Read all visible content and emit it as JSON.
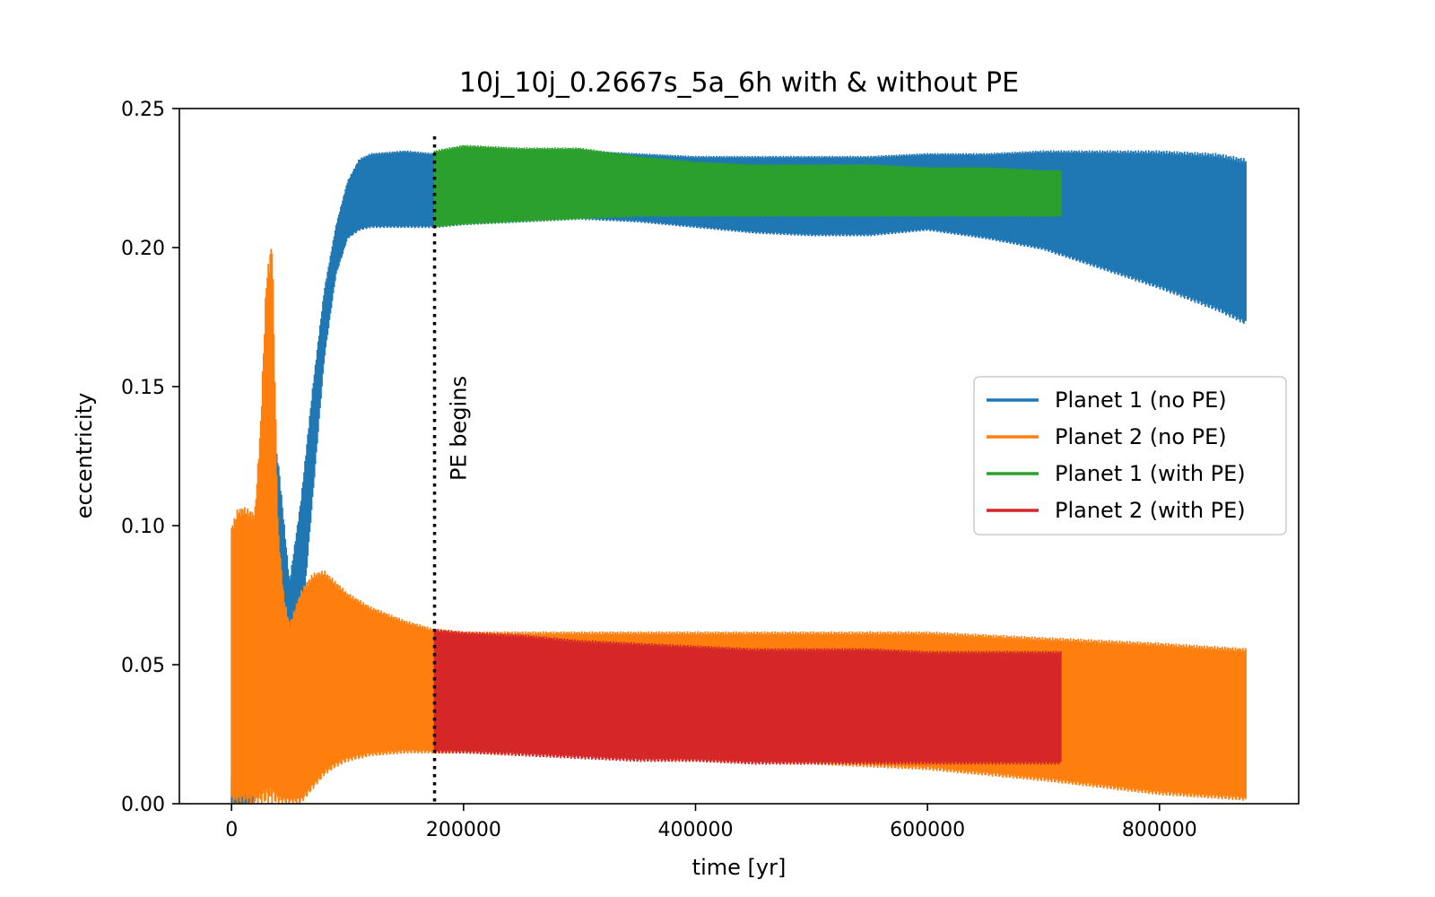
{
  "chart_data": {
    "type": "area",
    "title": "10j_10j_0.2667s_5a_6h with & without PE",
    "xlabel": "time [yr]",
    "ylabel": "eccentricity",
    "xlim": [
      -45000,
      920000
    ],
    "ylim": [
      0,
      0.25
    ],
    "x_ticks": [
      0,
      200000,
      400000,
      600000,
      800000
    ],
    "x_tick_labels": [
      "0",
      "200000",
      "400000",
      "600000",
      "800000"
    ],
    "y_ticks": [
      0,
      0.05,
      0.1,
      0.15,
      0.2,
      0.25
    ],
    "y_tick_labels": [
      "0.00",
      "0.05",
      "0.10",
      "0.15",
      "0.20",
      "0.25"
    ],
    "grid": false,
    "legend_position": "center-right",
    "annotation": {
      "text": "PE begins",
      "x": 175000
    },
    "series": [
      {
        "name": "Planet 1 (no PE)",
        "color": "#1f77b4",
        "x": [
          0,
          10000,
          20000,
          30000,
          40000,
          50000,
          60000,
          70000,
          80000,
          90000,
          100000,
          110000,
          120000,
          150000,
          175000,
          200000,
          250000,
          300000,
          350000,
          400000,
          450000,
          500000,
          550000,
          600000,
          650000,
          700000,
          750000,
          800000,
          850000,
          875000
        ],
        "upper": [
          0.01,
          0.012,
          0.03,
          0.135,
          0.125,
          0.08,
          0.11,
          0.15,
          0.185,
          0.208,
          0.224,
          0.232,
          0.234,
          0.235,
          0.234,
          0.235,
          0.235,
          0.235,
          0.234,
          0.233,
          0.233,
          0.233,
          0.233,
          0.234,
          0.234,
          0.235,
          0.235,
          0.235,
          0.234,
          0.232
        ],
        "lower": [
          0.0,
          0.0,
          0.0,
          0.05,
          0.03,
          0.04,
          0.06,
          0.11,
          0.16,
          0.19,
          0.203,
          0.206,
          0.207,
          0.207,
          0.207,
          0.208,
          0.209,
          0.21,
          0.209,
          0.207,
          0.205,
          0.204,
          0.204,
          0.206,
          0.203,
          0.199,
          0.192,
          0.185,
          0.177,
          0.172
        ]
      },
      {
        "name": "Planet 2 (no PE)",
        "color": "#ff7f0e",
        "x": [
          0,
          5000,
          10000,
          20000,
          25000,
          30000,
          35000,
          40000,
          45000,
          50000,
          60000,
          70000,
          80000,
          90000,
          100000,
          120000,
          150000,
          175000,
          200000,
          300000,
          400000,
          500000,
          600000,
          700000,
          800000,
          875000
        ],
        "upper": [
          0.1,
          0.106,
          0.107,
          0.105,
          0.137,
          0.19,
          0.204,
          0.1,
          0.075,
          0.065,
          0.077,
          0.083,
          0.084,
          0.08,
          0.076,
          0.071,
          0.066,
          0.063,
          0.062,
          0.062,
          0.062,
          0.062,
          0.062,
          0.06,
          0.058,
          0.056
        ],
        "lower": [
          0.0,
          0.0,
          0.0,
          0.0,
          0.0,
          0.0,
          0.0,
          0.0,
          0.0,
          0.0,
          0.0,
          0.005,
          0.01,
          0.013,
          0.015,
          0.017,
          0.018,
          0.018,
          0.018,
          0.017,
          0.015,
          0.014,
          0.012,
          0.008,
          0.003,
          0.001
        ]
      },
      {
        "name": "Planet 1 (with PE)",
        "color": "#2ca02c",
        "x": [
          175000,
          200000,
          250000,
          300000,
          350000,
          400000,
          450000,
          500000,
          550000,
          600000,
          650000,
          700000,
          715000
        ],
        "upper": [
          0.235,
          0.237,
          0.236,
          0.236,
          0.233,
          0.231,
          0.23,
          0.23,
          0.23,
          0.229,
          0.229,
          0.228,
          0.228
        ],
        "lower": [
          0.207,
          0.208,
          0.209,
          0.21,
          0.211,
          0.211,
          0.211,
          0.211,
          0.211,
          0.211,
          0.211,
          0.211,
          0.211
        ]
      },
      {
        "name": "Planet 2 (with PE)",
        "color": "#d62728",
        "x": [
          175000,
          200000,
          250000,
          300000,
          350000,
          400000,
          450000,
          500000,
          550000,
          600000,
          650000,
          700000,
          715000
        ],
        "upper": [
          0.063,
          0.062,
          0.061,
          0.059,
          0.058,
          0.057,
          0.056,
          0.056,
          0.056,
          0.055,
          0.055,
          0.055,
          0.055
        ],
        "lower": [
          0.018,
          0.018,
          0.017,
          0.016,
          0.015,
          0.015,
          0.014,
          0.014,
          0.014,
          0.014,
          0.014,
          0.014,
          0.014
        ]
      }
    ]
  }
}
